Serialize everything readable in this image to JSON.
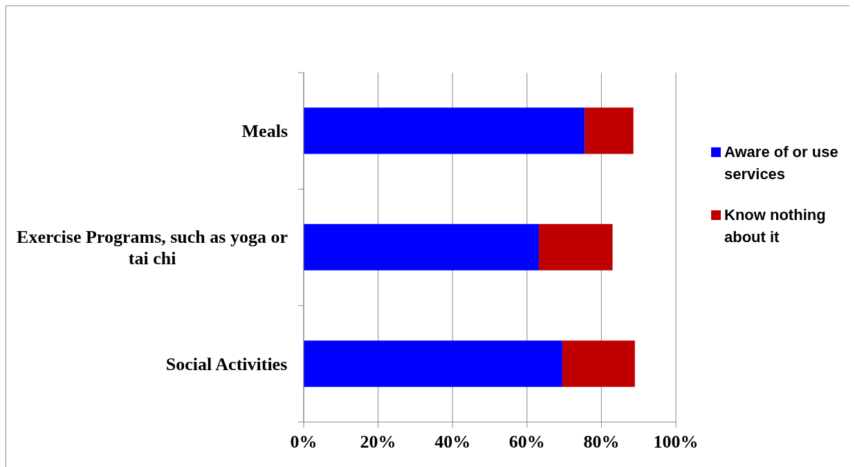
{
  "chart_data": {
    "type": "bar",
    "orientation": "horizontal",
    "stacked": true,
    "categories": [
      "Meals",
      "Exercise Programs, such as yoga or tai chi",
      "Social Activities"
    ],
    "series": [
      {
        "name": "Aware of or use services",
        "color": "#0000ff",
        "values": [
          75.5,
          63.2,
          69.5
        ]
      },
      {
        "name": "Know nothing about it",
        "color": "#c00000",
        "values": [
          13.1,
          19.8,
          19.5
        ]
      }
    ],
    "xlim": [
      0,
      100
    ],
    "xticks": [
      {
        "value": 0,
        "label": "0%"
      },
      {
        "value": 20,
        "label": "20%"
      },
      {
        "value": 40,
        "label": "40%"
      },
      {
        "value": 60,
        "label": "60%"
      },
      {
        "value": 80,
        "label": "80%"
      },
      {
        "value": 100,
        "label": "100%"
      }
    ],
    "grid": "x",
    "legend": "right"
  }
}
